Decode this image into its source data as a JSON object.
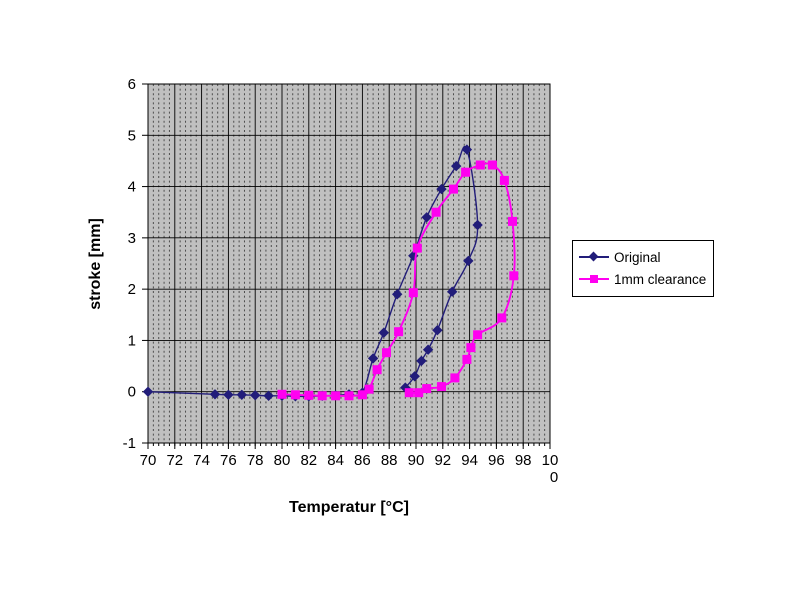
{
  "chart_data": {
    "type": "line",
    "title": "",
    "xlabel": "Temperatur [°C]",
    "ylabel": "stroke [mm]",
    "xlim": [
      70,
      100
    ],
    "ylim": [
      -1,
      6
    ],
    "x_tick_values": [
      70,
      72,
      74,
      76,
      78,
      80,
      82,
      84,
      86,
      88,
      90,
      92,
      94,
      96,
      98,
      100
    ],
    "x_tick_labels": [
      "70",
      "72",
      "74",
      "76",
      "78",
      "80",
      "82",
      "84",
      "86",
      "88",
      "90",
      "92",
      "94",
      "96",
      "98",
      "100"
    ],
    "y_tick_values": [
      6,
      5,
      4,
      3,
      2,
      1,
      0,
      -1
    ],
    "y_tick_labels": [
      "6",
      "5",
      "4",
      "3",
      "2",
      "1",
      "0",
      "-1"
    ],
    "grid": {
      "minor_step_x": 0.4,
      "major_step_x": 2,
      "horizontal_step": 1,
      "minor_style": "dashed",
      "major_style": "solid"
    },
    "legend_position": "right",
    "colors": {
      "plot_background": "#c0c0c0",
      "grid_major": "#000000",
      "grid_minor": "#4d4d4d",
      "axis": "#000000",
      "series_original": "#221d7a",
      "series_clearance": "#ff00f0"
    },
    "series": [
      {
        "name": "Original",
        "marker": "diamond",
        "color": "#221d7a",
        "points": [
          [
            70,
            0
          ],
          [
            75,
            -0.05
          ],
          [
            76,
            -0.06
          ],
          [
            77,
            -0.06
          ],
          [
            78,
            -0.07
          ],
          [
            79,
            -0.08
          ],
          [
            80,
            -0.08
          ],
          [
            81,
            -0.09
          ],
          [
            82,
            -0.09
          ],
          [
            83,
            -0.08
          ],
          [
            84,
            -0.07
          ],
          [
            85,
            -0.05
          ],
          [
            86,
            -0.02
          ],
          [
            86.8,
            0.65
          ],
          [
            87.6,
            1.15
          ],
          [
            88.6,
            1.9
          ],
          [
            89.8,
            2.65
          ],
          [
            90.8,
            3.4
          ],
          [
            91.9,
            3.95
          ],
          [
            93,
            4.4
          ],
          [
            93.8,
            4.72
          ],
          [
            94.6,
            3.25
          ],
          [
            93.9,
            2.55
          ],
          [
            92.7,
            1.95
          ],
          [
            91.6,
            1.2
          ],
          [
            90.9,
            0.82
          ],
          [
            90.4,
            0.6
          ],
          [
            89.9,
            0.3
          ],
          [
            89.2,
            0.08
          ]
        ]
      },
      {
        "name": "1mm clearance",
        "marker": "square",
        "color": "#ff00f0",
        "points": [
          [
            80,
            -0.05
          ],
          [
            81,
            -0.06
          ],
          [
            82,
            -0.07
          ],
          [
            83,
            -0.08
          ],
          [
            84,
            -0.08
          ],
          [
            85,
            -0.08
          ],
          [
            86,
            -0.06
          ],
          [
            86.5,
            0.05
          ],
          [
            87.1,
            0.43
          ],
          [
            87.8,
            0.76
          ],
          [
            88.7,
            1.17
          ],
          [
            89.8,
            1.93
          ],
          [
            90.1,
            2.8
          ],
          [
            91.5,
            3.5
          ],
          [
            92.8,
            3.95
          ],
          [
            93.7,
            4.28
          ],
          [
            94.8,
            4.42
          ],
          [
            95.7,
            4.42
          ],
          [
            96.6,
            4.12
          ],
          [
            97.2,
            3.32
          ],
          [
            97.3,
            2.26
          ],
          [
            96.4,
            1.44
          ],
          [
            94.6,
            1.11
          ],
          [
            94.1,
            0.86
          ],
          [
            93.8,
            0.63
          ],
          [
            92.9,
            0.27
          ],
          [
            91.9,
            0.1
          ],
          [
            90.8,
            0.06
          ],
          [
            90.2,
            -0.02
          ],
          [
            89.5,
            -0.02
          ]
        ]
      }
    ]
  },
  "legend": {
    "items": [
      {
        "label": "Original"
      },
      {
        "label": "1mm clearance"
      }
    ]
  }
}
